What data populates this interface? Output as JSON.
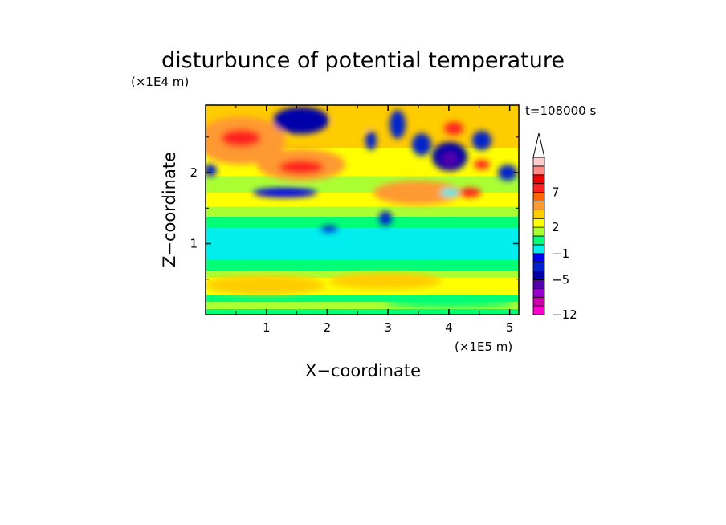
{
  "chart_data": {
    "type": "heatmap",
    "title": "disturbunce of potential temperature",
    "xlabel": "X−coordinate",
    "ylabel": "Z−coordinate",
    "x_unit": "(×1E5 m)",
    "y_unit": "(×1E4 m)",
    "time_label": "t=108000 s",
    "xlim": [
      0,
      5.15
    ],
    "ylim": [
      0,
      2.95
    ],
    "x_ticks": [
      {
        "value": 1,
        "label": "1"
      },
      {
        "value": 2,
        "label": "2"
      },
      {
        "value": 3,
        "label": "3"
      },
      {
        "value": 4,
        "label": "4"
      },
      {
        "value": 5,
        "label": "5"
      }
    ],
    "y_ticks": [
      {
        "value": 1,
        "label": "1"
      },
      {
        "value": 2,
        "label": "2"
      }
    ],
    "colorbar": {
      "levels": [
        -12,
        -11,
        -9,
        -7,
        -5,
        -4,
        -3,
        -1,
        0,
        1,
        2,
        3,
        4,
        5,
        7,
        8,
        9
      ],
      "colors": [
        "#ff00cc",
        "#cc00aa",
        "#9900cc",
        "#5500aa",
        "#0000aa",
        "#0022cc",
        "#0000ee",
        "#00eeee",
        "#00ff77",
        "#aaff33",
        "#ffff00",
        "#ffcc00",
        "#ff9933",
        "#ff6600",
        "#ff2222",
        "#ee0000",
        "#ff8888",
        "#ffcccc"
      ],
      "labels": [
        {
          "value": -12,
          "label": "−12"
        },
        {
          "value": -5,
          "label": "−5"
        },
        {
          "value": -1,
          "label": "−1"
        },
        {
          "value": 2,
          "label": "2"
        },
        {
          "value": 7,
          "label": "7"
        }
      ],
      "extend": "max"
    }
  }
}
